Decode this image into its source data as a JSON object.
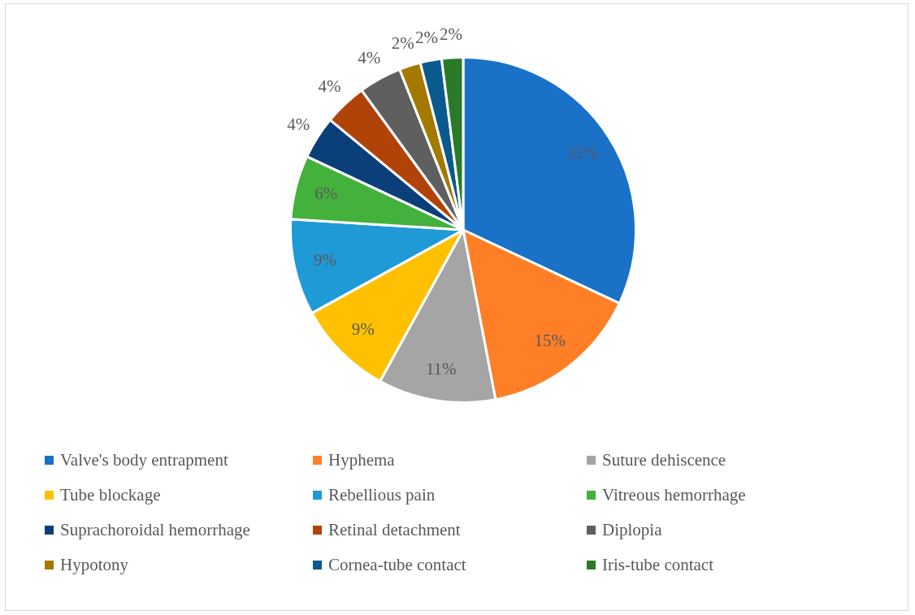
{
  "chart_data": {
    "type": "pie",
    "categories": [
      "Valve's body entrapment",
      "Hyphema",
      "Suture dehiscence",
      "Tube blockage",
      "Rebellious pain",
      "Vitreous hemorrhage",
      "Suprachoroidal hemorrhage",
      "Retinal detachment",
      "Diplopia",
      "Hypotony",
      "Cornea-tube contact",
      "Iris-tube contact"
    ],
    "values": [
      32,
      15,
      11,
      9,
      9,
      6,
      4,
      4,
      4,
      2,
      2,
      2
    ],
    "colors": [
      "#1a71c8",
      "#fe7f26",
      "#a5a5a5",
      "#ffc000",
      "#1f9ad6",
      "#44b13c",
      "#0b3f7a",
      "#b24308",
      "#5f5f5f",
      "#a47900",
      "#0a5a8e",
      "#2b7a2a"
    ],
    "value_labels": [
      "32%",
      "15%",
      "11%",
      "9%",
      "9%",
      "6%",
      "4%",
      "4%",
      "4%",
      "2%",
      "2%",
      "2%"
    ],
    "legend": "bottom"
  }
}
